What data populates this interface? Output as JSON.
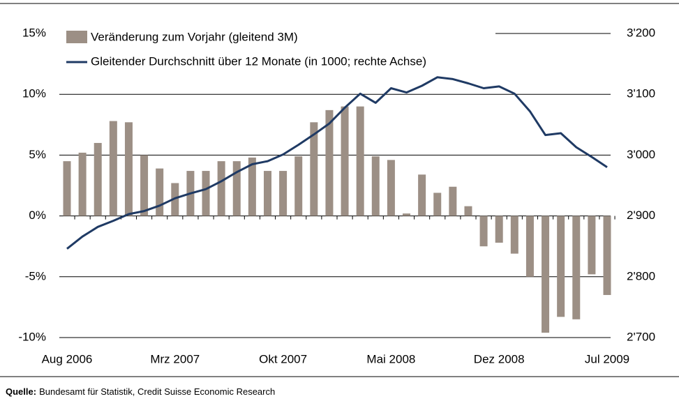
{
  "chart_data": {
    "type": "bar_line",
    "categories": [
      "Aug 2006",
      null,
      null,
      null,
      null,
      null,
      null,
      "Mrz 2007",
      null,
      null,
      null,
      null,
      null,
      null,
      "Okt 2007",
      null,
      null,
      null,
      null,
      null,
      null,
      "Mai 2008",
      null,
      null,
      null,
      null,
      null,
      null,
      "Dez 2008",
      null,
      null,
      null,
      null,
      null,
      null,
      "Jul 2009"
    ],
    "series": [
      {
        "name": "Veränderung zum Vorjahr (gleitend 3M)",
        "type": "bar",
        "color": "#9c8f85",
        "values": [
          4.5,
          5.2,
          6.0,
          7.8,
          7.7,
          5.0,
          3.9,
          2.7,
          3.7,
          3.7,
          4.5,
          4.5,
          4.8,
          3.7,
          3.7,
          4.9,
          7.7,
          8.7,
          9.0,
          9.0,
          4.9,
          4.6,
          0.2,
          3.4,
          1.9,
          2.4,
          0.8,
          -2.5,
          -2.2,
          -3.1,
          -5.0,
          -9.6,
          -8.3,
          -8.5,
          -4.8,
          -6.5
        ]
      },
      {
        "name": "Gleitender Durchschnitt über 12 Monate (in 1000; rechte Achse)",
        "type": "line",
        "axis": "y2",
        "color": "#1f3a64",
        "values": [
          2846,
          2866,
          2882,
          2892,
          2903,
          2908,
          2917,
          2929,
          2937,
          2944,
          2957,
          2972,
          2985,
          2990,
          3001,
          3017,
          3034,
          3052,
          3078,
          3101,
          3086,
          3110,
          3103,
          3114,
          3128,
          3125,
          3118,
          3110,
          3113,
          3101,
          3072,
          3033,
          3036,
          3013,
          2997,
          2980
        ]
      }
    ],
    "ylim": [
      -10,
      15
    ],
    "yticks": [
      {
        "value": -10,
        "label": "-10%"
      },
      {
        "value": -5,
        "label": "-5%"
      },
      {
        "value": 0,
        "label": "0%"
      },
      {
        "value": 5,
        "label": "5%"
      },
      {
        "value": 10,
        "label": "10%"
      },
      {
        "value": 15,
        "label": "15%"
      }
    ],
    "y2lim": [
      2700,
      3200
    ],
    "y2ticks": [
      {
        "value": 2700,
        "label": "2'700"
      },
      {
        "value": 2800,
        "label": "2'800"
      },
      {
        "value": 2900,
        "label": "2'900"
      },
      {
        "value": 3000,
        "label": "3'000"
      },
      {
        "value": 3100,
        "label": "3'100"
      },
      {
        "value": 3200,
        "label": "3'200"
      }
    ],
    "grid": true,
    "legend": "top-left",
    "source_label": "Quelle:",
    "source": "Bundesamt für Statistik, Credit Suisse Economic Research"
  }
}
